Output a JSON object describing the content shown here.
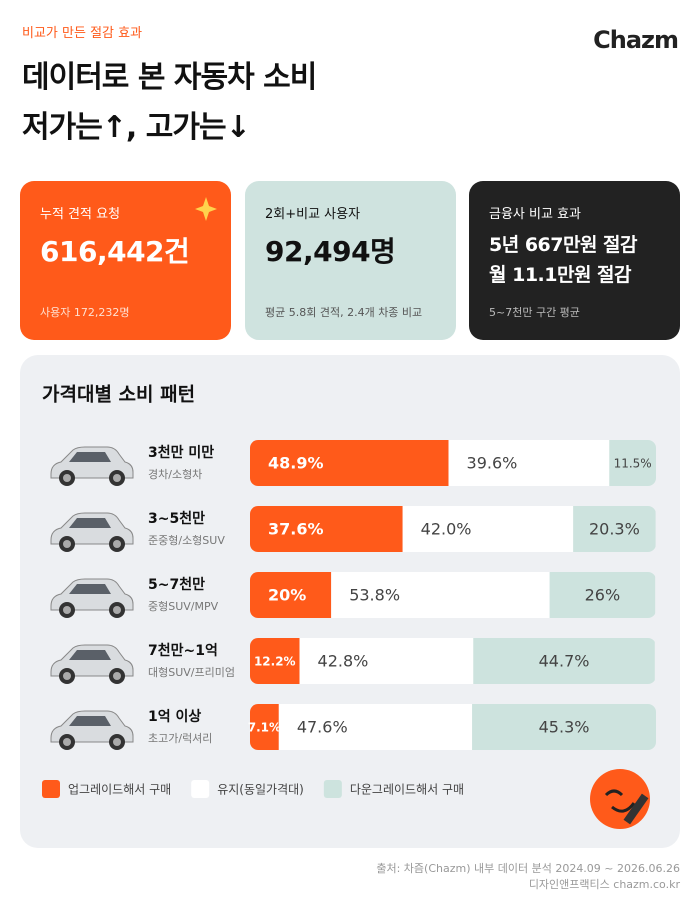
{
  "header": {
    "eyebrow": "비교가 만든 절감 효과",
    "title_lines": [
      "데이터로 본 자동차 소비",
      "저가는↑, 고가는↓"
    ],
    "brand": "Chazm"
  },
  "cards": [
    {
      "label": "누적 견적 요청",
      "value_lines": [
        "616,442건"
      ],
      "note": "사용자 172,232명"
    },
    {
      "label": "2회+비교 사용자",
      "value_lines": [
        "92,494명"
      ],
      "note": "평균 5.8회 견적, 2.4개 차종 비교"
    },
    {
      "label": "금융사 비교 효과",
      "value_lines": [
        "5년 667만원 절감",
        "월 11.1만원 절감"
      ],
      "note": "5~7천만 구간 평균"
    }
  ],
  "chart_data": {
    "type": "stacked-bar",
    "orientation": "horizontal",
    "title": "가격대별 소비 패턴",
    "categories": [
      "3천만 미만",
      "3~5천만",
      "5~7천만",
      "7천만~1억",
      "1억 이상"
    ],
    "subcategories": [
      "경차/소형차",
      "준중형/소형SUV",
      "중형SUV/MPV",
      "대형SUV/프리미엄",
      "초고가/럭셔리"
    ],
    "xlim": [
      0,
      100
    ],
    "series": [
      {
        "name": "업그레이드해서 구매",
        "color": "#ff5a1a",
        "values": [
          48.9,
          37.6,
          20,
          12.2,
          7.1
        ],
        "value_labels": [
          "48.9%",
          "37.6%",
          "20%",
          "12.2%",
          "7.1%"
        ]
      },
      {
        "name": "유지(동일가격대)",
        "color": "#ffffff",
        "values": [
          39.6,
          42.0,
          53.8,
          42.8,
          47.6
        ],
        "value_labels": [
          "39.6%",
          "42.0%",
          "53.8%",
          "42.8%",
          "47.6%"
        ]
      },
      {
        "name": "다운그레이드해서 구매",
        "color": "#cde3de",
        "values": [
          11.5,
          20.3,
          26,
          44.7,
          45.3
        ],
        "value_labels": [
          "11.5%",
          "20.3%",
          "26%",
          "44.7%",
          "45.3%"
        ]
      }
    ]
  },
  "footer": {
    "source": "출처: 차즘(Chazm) 내부 데이터 분석 2024.09 ~ 2026.06.26",
    "credit": "디자인앤프랙티스 chazm.co.kr"
  }
}
